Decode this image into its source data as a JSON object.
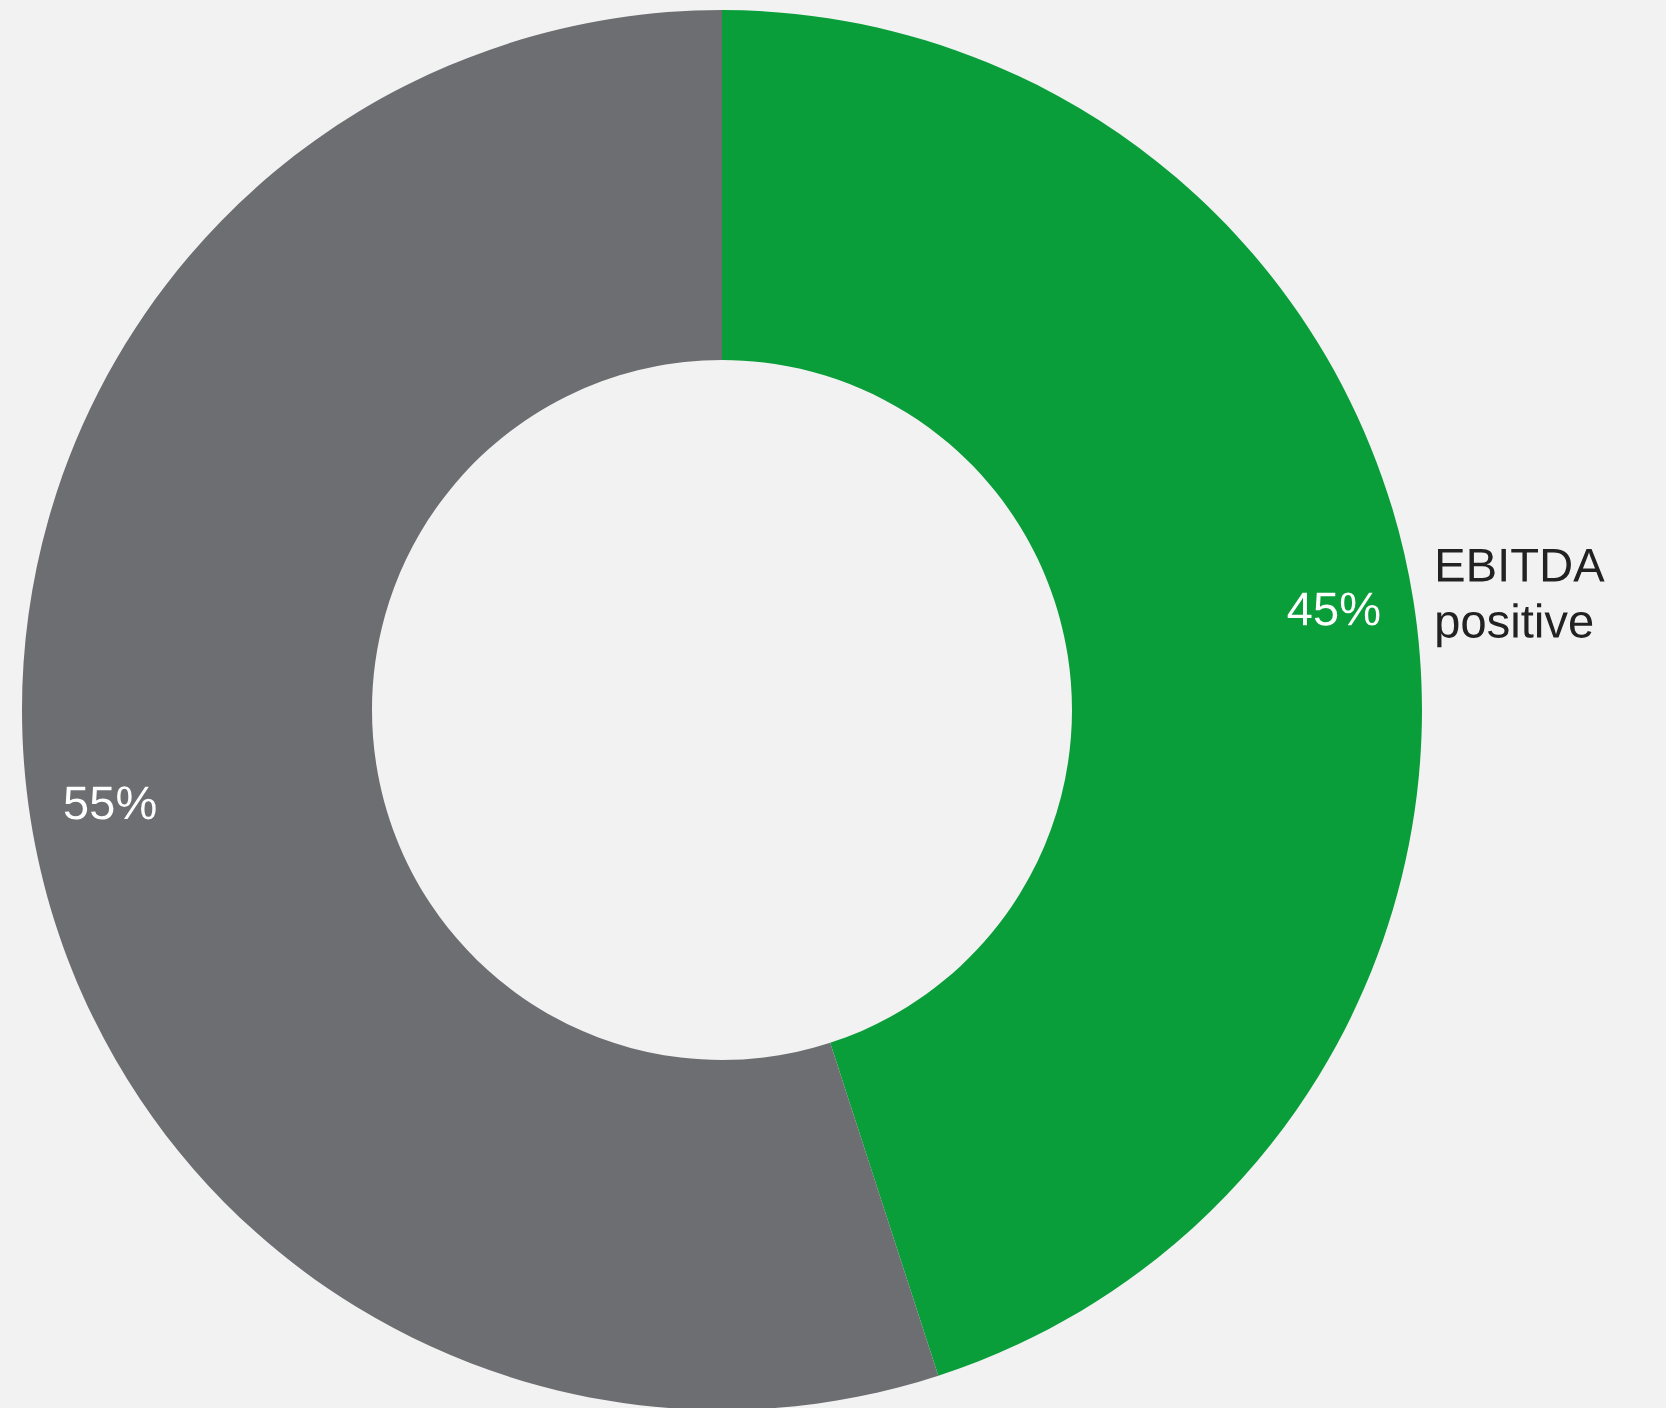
{
  "chart_data": {
    "type": "donut",
    "categories": [
      "EBITDA\npositive",
      null
    ],
    "values": [
      45,
      55
    ],
    "colors": [
      "#0a9e3a",
      "#6d6e71"
    ],
    "value_labels": [
      "45%",
      "55%"
    ]
  }
}
